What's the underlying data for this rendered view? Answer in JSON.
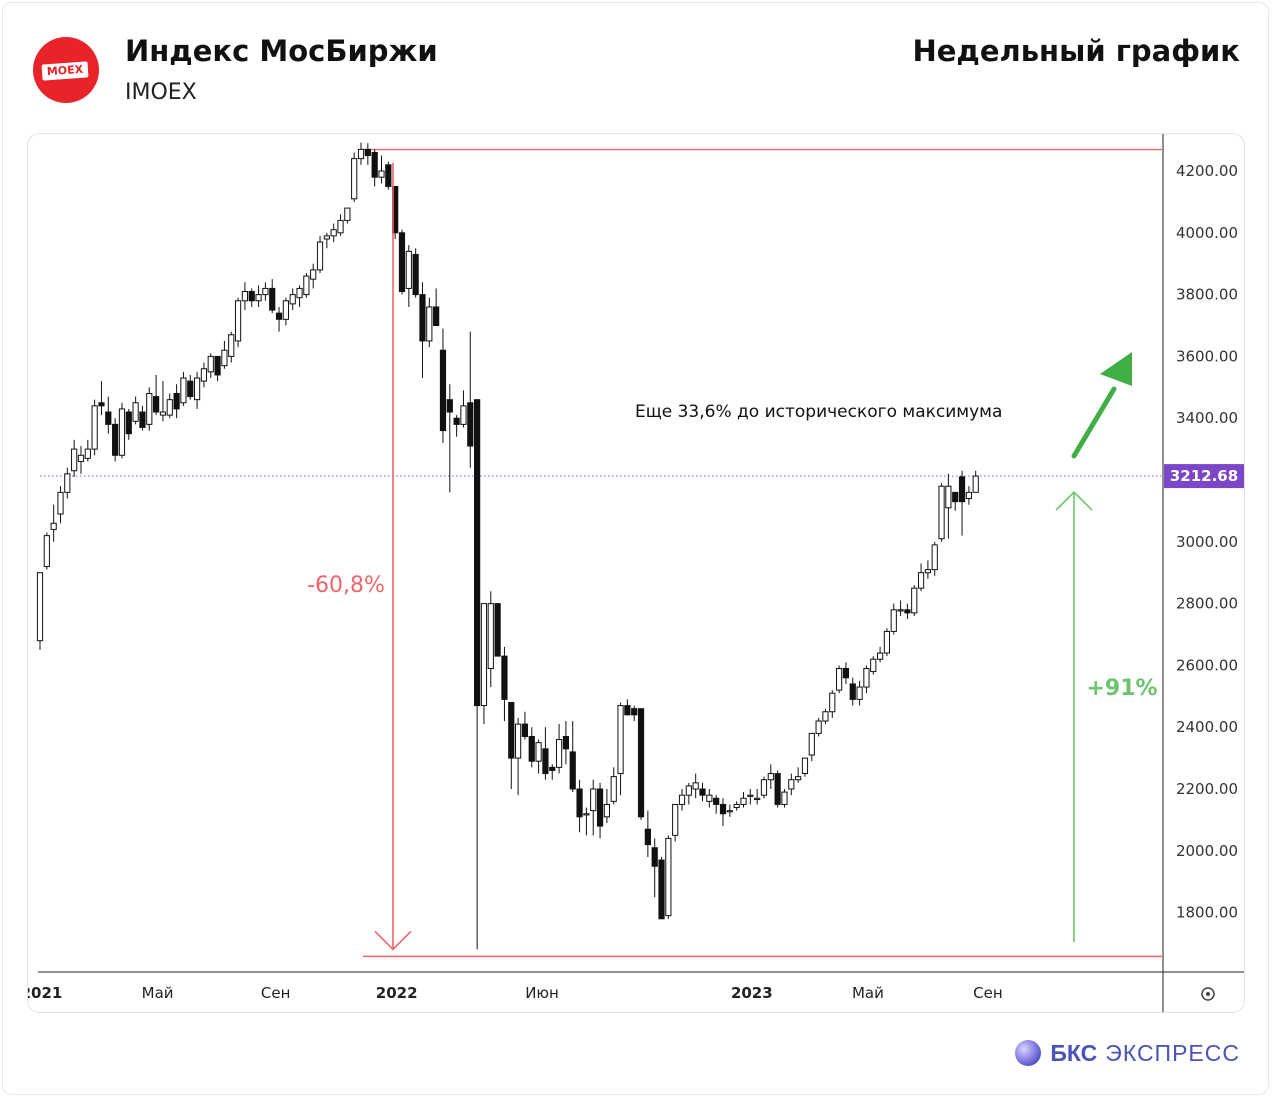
{
  "header": {
    "logo_text": "MOEX",
    "title": "Индекс МосБиржи",
    "ticker": "IMOEX",
    "period": "Недельный график"
  },
  "footer": {
    "brand": "БКС",
    "product": "ЭКСПРЕСС"
  },
  "colors": {
    "drop": "#f0646c",
    "rise": "#6cc46e",
    "arrow": "#3fae45",
    "price_label": "#7b46c8",
    "price_line": "#6a4cc8",
    "brand": "#4b52b8"
  },
  "chart_data": {
    "type": "candlestick",
    "interval": "weekly",
    "y_axis": {
      "ticks": [
        "4200.00",
        "4000.00",
        "3800.00",
        "3600.00",
        "3400.00",
        "3200.00",
        "3000.00",
        "2800.00",
        "2600.00",
        "2400.00",
        "2200.00",
        "2000.00",
        "1800.00"
      ],
      "range": [
        1640,
        4300
      ]
    },
    "x_axis": {
      "labels": [
        {
          "text": "2021",
          "date": "2021-01-04",
          "bold": true
        },
        {
          "text": "Май",
          "date": "2021-05-03",
          "bold": false
        },
        {
          "text": "Сен",
          "date": "2021-09-01",
          "bold": false
        },
        {
          "text": "2022",
          "date": "2022-01-03",
          "bold": true
        },
        {
          "text": "Июн",
          "date": "2022-06-01",
          "bold": false
        },
        {
          "text": "2023",
          "date": "2023-01-02",
          "bold": true
        },
        {
          "text": "Май",
          "date": "2023-05-01",
          "bold": false
        },
        {
          "text": "Сен",
          "date": "2023-09-01",
          "bold": false
        }
      ]
    },
    "last_price": 3212.68,
    "last_price_label": "3212.68",
    "annotations": {
      "drop_label": "-60,8%",
      "rise_label": "+91%",
      "target_text": "Еще 33,6% до исторического максимума",
      "historic_high": 4292,
      "crash_low": 1681
    },
    "candles": [
      [
        2900,
        2650,
        2680,
        2900
      ],
      [
        3030,
        2910,
        2920,
        3020
      ],
      [
        3120,
        3000,
        3040,
        3060
      ],
      [
        3180,
        3060,
        3090,
        3160
      ],
      [
        3240,
        3140,
        3160,
        3220
      ],
      [
        3330,
        3210,
        3230,
        3300
      ],
      [
        3310,
        3220,
        3260,
        3280
      ],
      [
        3330,
        3260,
        3270,
        3300
      ],
      [
        3460,
        3280,
        3300,
        3440
      ],
      [
        3520,
        3410,
        3450,
        3440
      ],
      [
        3470,
        3350,
        3420,
        3380
      ],
      [
        3400,
        3260,
        3380,
        3280
      ],
      [
        3450,
        3270,
        3280,
        3430
      ],
      [
        3430,
        3330,
        3420,
        3350
      ],
      [
        3470,
        3380,
        3390,
        3450
      ],
      [
        3440,
        3360,
        3420,
        3370
      ],
      [
        3500,
        3360,
        3380,
        3480
      ],
      [
        3540,
        3410,
        3470,
        3420
      ],
      [
        3520,
        3390,
        3410,
        3420
      ],
      [
        3480,
        3400,
        3410,
        3460
      ],
      [
        3510,
        3400,
        3480,
        3430
      ],
      [
        3550,
        3440,
        3450,
        3530
      ],
      [
        3540,
        3460,
        3520,
        3470
      ],
      [
        3550,
        3430,
        3460,
        3530
      ],
      [
        3580,
        3500,
        3520,
        3560
      ],
      [
        3610,
        3530,
        3550,
        3600
      ],
      [
        3600,
        3520,
        3600,
        3540
      ],
      [
        3650,
        3560,
        3570,
        3620
      ],
      [
        3680,
        3580,
        3600,
        3670
      ],
      [
        3790,
        3630,
        3650,
        3780
      ],
      [
        3840,
        3750,
        3780,
        3810
      ],
      [
        3820,
        3760,
        3810,
        3780
      ],
      [
        3830,
        3760,
        3780,
        3800
      ],
      [
        3840,
        3780,
        3800,
        3820
      ],
      [
        3850,
        3740,
        3820,
        3750
      ],
      [
        3760,
        3680,
        3740,
        3720
      ],
      [
        3790,
        3700,
        3720,
        3780
      ],
      [
        3820,
        3750,
        3770,
        3800
      ],
      [
        3830,
        3760,
        3790,
        3820
      ],
      [
        3870,
        3790,
        3800,
        3860
      ],
      [
        3900,
        3820,
        3850,
        3880
      ],
      [
        3990,
        3870,
        3880,
        3970
      ],
      [
        4000,
        3950,
        3980,
        3990
      ],
      [
        4030,
        3970,
        3990,
        4010
      ],
      [
        4060,
        3990,
        4000,
        4040
      ],
      [
        4080,
        4030,
        4040,
        4080
      ],
      [
        4260,
        4100,
        4110,
        4240
      ],
      [
        4292,
        4220,
        4240,
        4270
      ],
      [
        4290,
        4220,
        4270,
        4250
      ],
      [
        4270,
        4150,
        4260,
        4180
      ],
      [
        4250,
        4160,
        4180,
        4200
      ],
      [
        4230,
        4140,
        4220,
        4150
      ],
      [
        4150,
        3980,
        4150,
        4000
      ],
      [
        4010,
        3800,
        4000,
        3810
      ],
      [
        3960,
        3760,
        3820,
        3940
      ],
      [
        3950,
        3790,
        3930,
        3800
      ],
      [
        3840,
        3530,
        3800,
        3650
      ],
      [
        3790,
        3630,
        3650,
        3760
      ],
      [
        3820,
        3700,
        3760,
        3700
      ],
      [
        3690,
        3320,
        3620,
        3360
      ],
      [
        3510,
        3160,
        3460,
        3420
      ],
      [
        3410,
        3340,
        3400,
        3380
      ],
      [
        3490,
        3370,
        3380,
        3440
      ],
      [
        3680,
        3240,
        3450,
        3310
      ],
      [
        3460,
        1681,
        3460,
        2470
      ],
      [
        2800,
        2410,
        2470,
        2800
      ],
      [
        2840,
        2530,
        2590,
        2800
      ],
      [
        2800,
        2630,
        2800,
        2630
      ],
      [
        2660,
        2420,
        2630,
        2490
      ],
      [
        2480,
        2200,
        2480,
        2300
      ],
      [
        2430,
        2180,
        2300,
        2410
      ],
      [
        2450,
        2360,
        2410,
        2370
      ],
      [
        2400,
        2270,
        2370,
        2290
      ],
      [
        2360,
        2250,
        2290,
        2350
      ],
      [
        2400,
        2230,
        2330,
        2250
      ],
      [
        2280,
        2230,
        2270,
        2260
      ],
      [
        2410,
        2250,
        2270,
        2360
      ],
      [
        2420,
        2280,
        2370,
        2330
      ],
      [
        2420,
        2190,
        2320,
        2200
      ],
      [
        2230,
        2060,
        2200,
        2110
      ],
      [
        2140,
        2050,
        2120,
        2120
      ],
      [
        2230,
        2050,
        2130,
        2200
      ],
      [
        2220,
        2040,
        2200,
        2080
      ],
      [
        2200,
        2090,
        2110,
        2150
      ],
      [
        2270,
        2150,
        2160,
        2240
      ],
      [
        2480,
        2180,
        2250,
        2470
      ],
      [
        2490,
        2440,
        2470,
        2440
      ],
      [
        2470,
        2420,
        2460,
        2440
      ],
      [
        2460,
        2100,
        2460,
        2110
      ],
      [
        2130,
        1980,
        2070,
        2020
      ],
      [
        2040,
        1850,
        2010,
        1950
      ],
      [
        1980,
        1780,
        1970,
        1780
      ],
      [
        2050,
        1780,
        1790,
        2040
      ],
      [
        2140,
        2030,
        2050,
        2150
      ],
      [
        2200,
        2130,
        2150,
        2180
      ],
      [
        2220,
        2150,
        2180,
        2210
      ],
      [
        2250,
        2170,
        2200,
        2220
      ],
      [
        2220,
        2160,
        2200,
        2180
      ],
      [
        2200,
        2140,
        2160,
        2180
      ],
      [
        2180,
        2120,
        2170,
        2150
      ],
      [
        2170,
        2080,
        2150,
        2120
      ],
      [
        2150,
        2110,
        2130,
        2130
      ],
      [
        2160,
        2130,
        2140,
        2150
      ],
      [
        2190,
        2140,
        2150,
        2170
      ],
      [
        2200,
        2150,
        2180,
        2180
      ],
      [
        2200,
        2150,
        2170,
        2170
      ],
      [
        2240,
        2170,
        2180,
        2230
      ],
      [
        2280,
        2200,
        2230,
        2250
      ],
      [
        2260,
        2140,
        2250,
        2150
      ],
      [
        2200,
        2140,
        2150,
        2190
      ],
      [
        2250,
        2180,
        2200,
        2230
      ],
      [
        2270,
        2220,
        2230,
        2240
      ],
      [
        2300,
        2240,
        2250,
        2300
      ],
      [
        2380,
        2290,
        2310,
        2380
      ],
      [
        2430,
        2370,
        2380,
        2420
      ],
      [
        2460,
        2410,
        2420,
        2450
      ],
      [
        2520,
        2430,
        2450,
        2510
      ],
      [
        2600,
        2510,
        2520,
        2590
      ],
      [
        2610,
        2540,
        2590,
        2560
      ],
      [
        2560,
        2470,
        2540,
        2490
      ],
      [
        2550,
        2470,
        2490,
        2530
      ],
      [
        2600,
        2510,
        2530,
        2590
      ],
      [
        2630,
        2570,
        2580,
        2620
      ],
      [
        2660,
        2610,
        2620,
        2640
      ],
      [
        2720,
        2630,
        2640,
        2710
      ],
      [
        2800,
        2700,
        2710,
        2780
      ],
      [
        2810,
        2760,
        2780,
        2780
      ],
      [
        2800,
        2750,
        2780,
        2770
      ],
      [
        2860,
        2760,
        2770,
        2850
      ],
      [
        2930,
        2840,
        2850,
        2900
      ],
      [
        2940,
        2880,
        2900,
        2910
      ],
      [
        3000,
        2890,
        2910,
        2990
      ],
      [
        3190,
        3000,
        3010,
        3180
      ],
      [
        3220,
        3010,
        3110,
        3180
      ],
      [
        3160,
        3100,
        3160,
        3130
      ],
      [
        3230,
        3020,
        3210,
        3130
      ],
      [
        3180,
        3120,
        3140,
        3160
      ],
      [
        3230,
        3160,
        3160,
        3212.68
      ]
    ]
  }
}
